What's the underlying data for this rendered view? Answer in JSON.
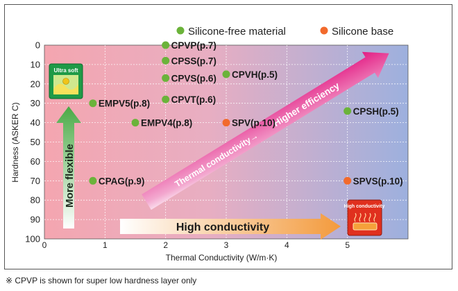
{
  "chart_data": {
    "type": "scatter",
    "xlabel": "Thermal Conductivity (W/m·K)",
    "ylabel": "Hardness (ASKER C)",
    "xlim": [
      0,
      6
    ],
    "ylim": [
      0,
      100
    ],
    "y_inverted": true,
    "x_ticks": [
      "0",
      "1",
      "2",
      "3",
      "4",
      "5"
    ],
    "y_ticks": [
      "0",
      "10",
      "20",
      "30",
      "40",
      "50",
      "60",
      "70",
      "80",
      "90",
      "100"
    ],
    "legend": [
      {
        "name": "Silicone-free material",
        "color": "#6bb33a"
      },
      {
        "name": "Silicone base",
        "color": "#f26a2c"
      }
    ],
    "points": [
      {
        "label": "CPVP(p.7)",
        "x": 2.0,
        "y": 0,
        "series": "Silicone-free material"
      },
      {
        "label": "CPSS(p.7)",
        "x": 2.0,
        "y": 8,
        "series": "Silicone-free material"
      },
      {
        "label": "CPVS(p.6)",
        "x": 2.0,
        "y": 17,
        "series": "Silicone-free material"
      },
      {
        "label": "CPVH(p.5)",
        "x": 3.0,
        "y": 15,
        "series": "Silicone-free material"
      },
      {
        "label": "CPVT(p.6)",
        "x": 2.0,
        "y": 28,
        "series": "Silicone-free material"
      },
      {
        "label": "EMPV5(p.8)",
        "x": 0.8,
        "y": 30,
        "series": "Silicone-free material"
      },
      {
        "label": "EMPV4(p.8)",
        "x": 1.5,
        "y": 40,
        "series": "Silicone-free material"
      },
      {
        "label": "SPV(p.10)",
        "x": 3.0,
        "y": 40,
        "series": "Silicone base"
      },
      {
        "label": "CPSH(p.5)",
        "x": 5.0,
        "y": 34,
        "series": "Silicone-free material"
      },
      {
        "label": "CPAG(p.9)",
        "x": 0.8,
        "y": 70,
        "series": "Silicone-free material"
      },
      {
        "label": "SPVS(p.10)",
        "x": 5.0,
        "y": 70,
        "series": "Silicone base"
      }
    ],
    "annotations": {
      "ultra_soft": "Ultra soft",
      "more_flexible": "More flexible",
      "thermal_conductivity": "Thermal conductivity→",
      "higher_efficiency": "Higher efficiency",
      "high_conductivity_arrow": "High conductivity",
      "high_conductivity_badge": "High conductivity"
    },
    "colors": {
      "silicone_free": "#6bb33a",
      "silicone_base": "#f26a2c",
      "bg_left": "#f4a6b0",
      "bg_right": "#9db0de",
      "diag_arrow": "#e2147f",
      "horiz_arrow": "#f39a3c",
      "vert_arrow": "#4aaa46"
    }
  },
  "footnote": "※ CPVP is shown for super low hardness layer only"
}
